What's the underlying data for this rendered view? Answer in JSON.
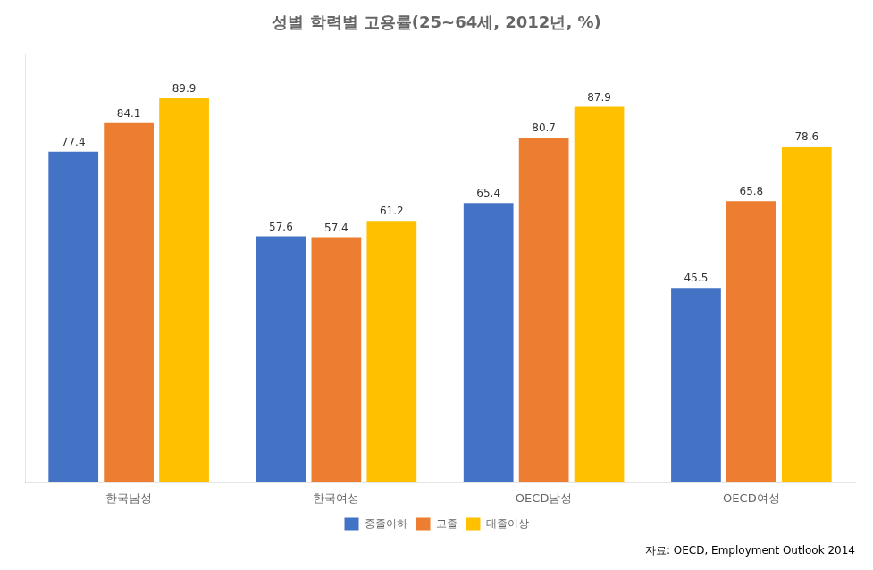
{
  "chart_data": {
    "type": "bar",
    "title": "성별 학력별 고용률(25~64세, 2012년, %)",
    "categories": [
      "한국남성",
      "한국여성",
      "OECD남성",
      "OECD여성"
    ],
    "series": [
      {
        "name": "중졸이하",
        "color": "#4472C4",
        "values": [
          77.4,
          57.6,
          65.4,
          45.5
        ]
      },
      {
        "name": "고졸",
        "color": "#ED7D31",
        "values": [
          84.1,
          57.4,
          80.7,
          65.8
        ]
      },
      {
        "name": "대졸이상",
        "color": "#FFC000",
        "values": [
          89.9,
          61.2,
          87.9,
          78.6
        ]
      }
    ],
    "annotations": [
      "자료: OECD, Employment Outlook 2014"
    ],
    "ylim": [
      0,
      100
    ],
    "grid": false,
    "legend": "bottom",
    "data_labels": true,
    "tick_labels": "x"
  }
}
